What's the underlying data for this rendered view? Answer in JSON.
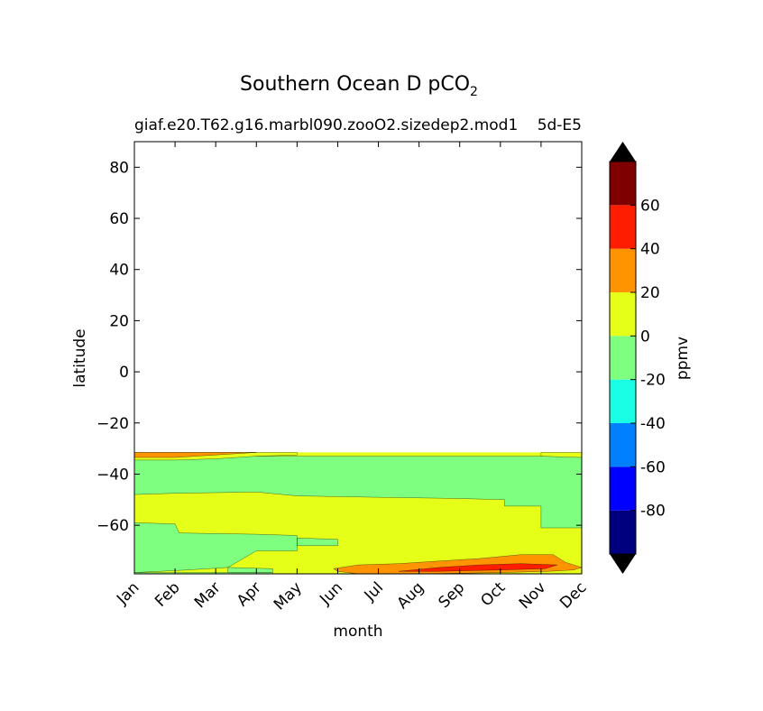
{
  "chart_data": {
    "type": "contourf",
    "title": "Southern Ocean D pCO",
    "title_subscript": "2",
    "subtitle_left": "giaf.e20.T62.g16.marbl090.zooO2.sizedep2.mod1",
    "subtitle_right": "5d-E5",
    "xlabel": "month",
    "ylabel": "latitude",
    "x_categories": [
      "Jan",
      "Feb",
      "Mar",
      "Apr",
      "May",
      "Jun",
      "Jul",
      "Aug",
      "Sep",
      "Oct",
      "Nov",
      "Dec"
    ],
    "y_ticks": [
      80,
      60,
      40,
      20,
      0,
      -20,
      -40,
      -60
    ],
    "y_tick_labels": [
      "80",
      "60",
      "40",
      "20",
      "0",
      "−20",
      "−40",
      "−60"
    ],
    "ylim": [
      -79,
      90
    ],
    "data_extent_lat": [
      -79,
      -31.5
    ],
    "colorbar": {
      "label": "ppmv",
      "tick_labels": [
        "60",
        "40",
        "20",
        "0",
        "-20",
        "-40",
        "-60",
        "-80"
      ],
      "tick_values": [
        60,
        40,
        20,
        0,
        -20,
        -40,
        -60,
        -80
      ],
      "levels": [
        -100,
        -80,
        -60,
        -40,
        -20,
        0,
        20,
        40,
        60,
        80
      ],
      "colors": [
        "#00007f",
        "#0000ff",
        "#007fff",
        "#19ffe5",
        "#7fff7f",
        "#e5ff19",
        "#ff9400",
        "#ff1d00",
        "#7f0000"
      ],
      "extend_min_color": "#000000",
      "extend_max_color": "#000000"
    },
    "contour_regions": [
      {
        "level": "0 to 20",
        "color": "#e5ff19",
        "lat_range": [
          -79,
          -31.5
        ],
        "months": [
          1,
          12
        ]
      },
      {
        "level": "-20 to 0",
        "color": "#7fff7f",
        "lat_range": [
          -48,
          -33
        ],
        "months": [
          1,
          12
        ]
      },
      {
        "level": "-20 to 0",
        "color": "#7fff7f",
        "lat_range": [
          -79,
          -59
        ],
        "months": [
          1,
          5
        ]
      },
      {
        "level": "-20 to 0",
        "color": "#7fff7f",
        "lat_range": [
          -61,
          -33
        ],
        "months": [
          11,
          12
        ]
      },
      {
        "level": "20 to 40",
        "color": "#ff9400",
        "lat_range": [
          -33,
          -31.5
        ],
        "months": [
          1,
          4
        ]
      },
      {
        "level": "20 to 40",
        "color": "#ff9400",
        "lat_range": [
          -79,
          -72
        ],
        "months": [
          5.5,
          12
        ]
      },
      {
        "level": "40 to 60",
        "color": "#ff1d00",
        "lat_range": [
          -78,
          -75
        ],
        "months": [
          7.5,
          11
        ]
      }
    ]
  }
}
